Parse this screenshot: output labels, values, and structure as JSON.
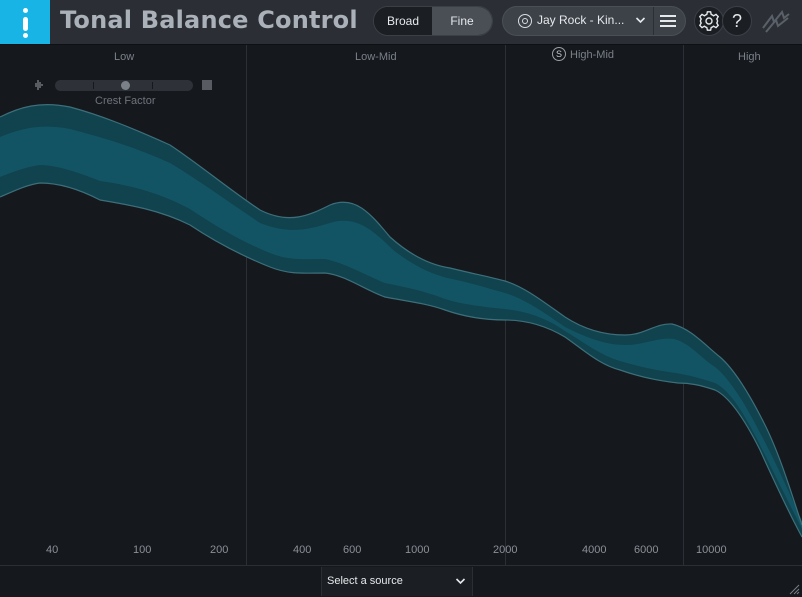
{
  "app": {
    "title": "Tonal Balance Control"
  },
  "view_toggle": {
    "broad_label": "Broad",
    "fine_label": "Fine",
    "selected": "Fine"
  },
  "target": {
    "label": "Jay Rock - Kin..."
  },
  "regions": {
    "low": "Low",
    "low_mid": "Low-Mid",
    "high_mid": "High-Mid",
    "high_mid_badge": "S",
    "high": "High"
  },
  "crest_factor": {
    "label": "Crest Factor",
    "value_fraction": 0.5
  },
  "frequency_axis": [
    "40",
    "100",
    "200",
    "400",
    "600",
    "1000",
    "2000",
    "4000",
    "6000",
    "10000"
  ],
  "source": {
    "placeholder": "Select a source"
  },
  "colors": {
    "accent": "#19b4e6",
    "band": "#0f4a57",
    "band_inner": "#145a68",
    "band_edge": "#3d6f7a",
    "background": "#15181d"
  }
}
